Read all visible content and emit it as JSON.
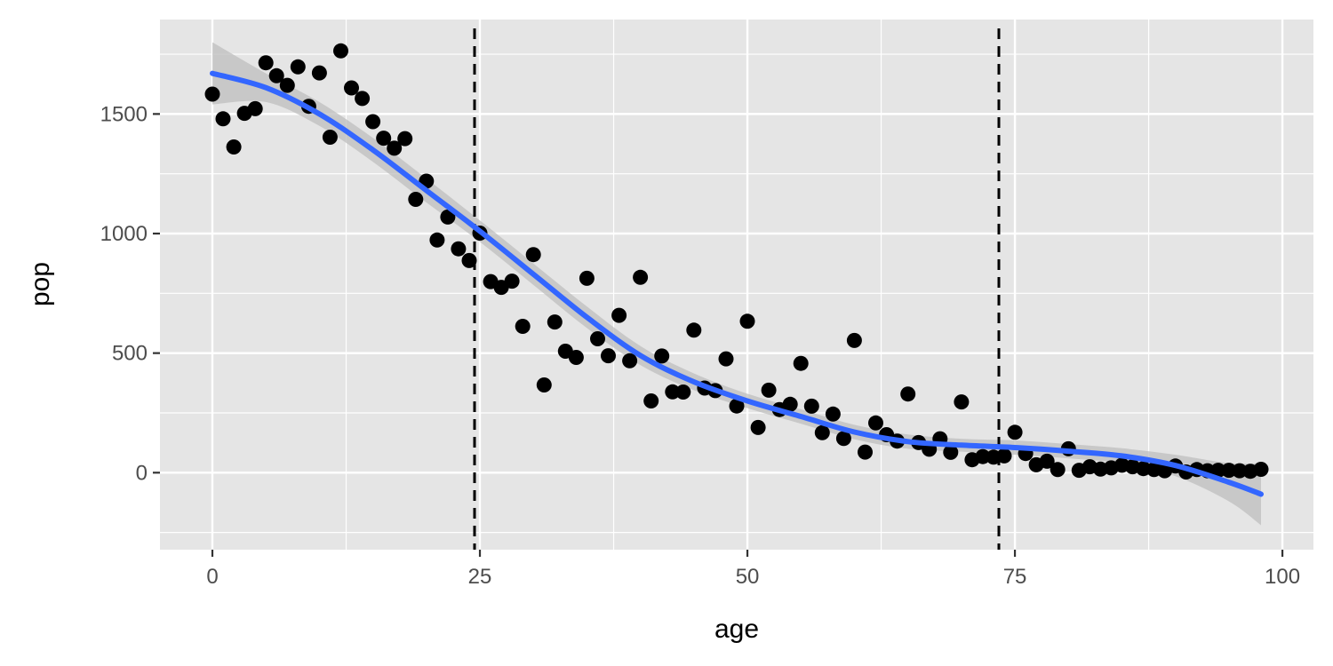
{
  "chart_data": {
    "type": "scatter",
    "title": "",
    "xlabel": "age",
    "ylabel": "pop",
    "xlim": [
      -4.9,
      102.9
    ],
    "ylim": [
      -322,
      1895
    ],
    "x_ticks": [
      0,
      25,
      50,
      75,
      100
    ],
    "y_ticks": [
      0,
      500,
      1000,
      1500
    ],
    "grid": true,
    "legend": "none",
    "colors": {
      "panel": "#e5e5e5",
      "grid": "#ffffff",
      "points": "#000000",
      "smooth_line": "#3366ff",
      "confidence_band": "#bdbdbd",
      "vlines": "#000000"
    },
    "vlines": [
      24.5,
      73.5
    ],
    "points": {
      "x": [
        0,
        1,
        2,
        3,
        4,
        5,
        6,
        7,
        8,
        9,
        10,
        11,
        12,
        13,
        14,
        15,
        16,
        17,
        18,
        19,
        20,
        21,
        22,
        23,
        24,
        25,
        26,
        27,
        28,
        29,
        30,
        31,
        32,
        33,
        34,
        35,
        36,
        37,
        38,
        39,
        40,
        41,
        42,
        43,
        44,
        45,
        46,
        47,
        48,
        49,
        50,
        51,
        52,
        53,
        54,
        55,
        56,
        57,
        58,
        59,
        60,
        61,
        62,
        63,
        64,
        65,
        66,
        67,
        68,
        69,
        70,
        71,
        72,
        73,
        74,
        75,
        76,
        77,
        78,
        79,
        80,
        81,
        82,
        83,
        84,
        85,
        86,
        87,
        88,
        89,
        90,
        91,
        92,
        93,
        94,
        95,
        96,
        97,
        98
      ],
      "y": [
        1583,
        1480,
        1362,
        1503,
        1522,
        1714,
        1660,
        1620,
        1697,
        1532,
        1672,
        1403,
        1764,
        1609,
        1565,
        1468,
        1399,
        1357,
        1397,
        1143,
        1219,
        973,
        1069,
        936,
        887,
        1002,
        799,
        775,
        801,
        612,
        912,
        367,
        630,
        508,
        482,
        813,
        560,
        489,
        658,
        468,
        817,
        300,
        488,
        338,
        337,
        596,
        354,
        343,
        476,
        279,
        633,
        189,
        345,
        264,
        286,
        457,
        278,
        167,
        245,
        143,
        553,
        86,
        208,
        159,
        132,
        329,
        126,
        98,
        142,
        85,
        296,
        54,
        67,
        65,
        70,
        169,
        80,
        33,
        48,
        13,
        100,
        10,
        25,
        15,
        20,
        31,
        25,
        17,
        13,
        8,
        28,
        3,
        13,
        8,
        10,
        10,
        8,
        6,
        14
      ]
    },
    "smooth_fit": {
      "x": [
        0,
        5,
        10,
        15,
        20,
        25,
        30,
        35,
        40,
        45,
        50,
        55,
        60,
        65,
        70,
        75,
        80,
        85,
        90,
        95,
        98
      ],
      "y": [
        1670,
        1610,
        1500,
        1350,
        1180,
        1010,
        830,
        650,
        490,
        380,
        300,
        235,
        170,
        130,
        115,
        105,
        90,
        70,
        30,
        -40,
        -90
      ]
    },
    "confidence_band": {
      "x": [
        0,
        5,
        10,
        15,
        20,
        25,
        30,
        35,
        40,
        45,
        50,
        55,
        60,
        65,
        70,
        75,
        80,
        85,
        90,
        95,
        98
      ],
      "lower": [
        1540,
        1550,
        1450,
        1300,
        1130,
        965,
        785,
        605,
        450,
        345,
        270,
        205,
        140,
        100,
        88,
        75,
        60,
        38,
        -15,
        -120,
        -220
      ],
      "upper": [
        1800,
        1670,
        1550,
        1400,
        1230,
        1055,
        875,
        695,
        530,
        415,
        330,
        265,
        200,
        160,
        142,
        135,
        120,
        102,
        75,
        40,
        40
      ]
    }
  }
}
